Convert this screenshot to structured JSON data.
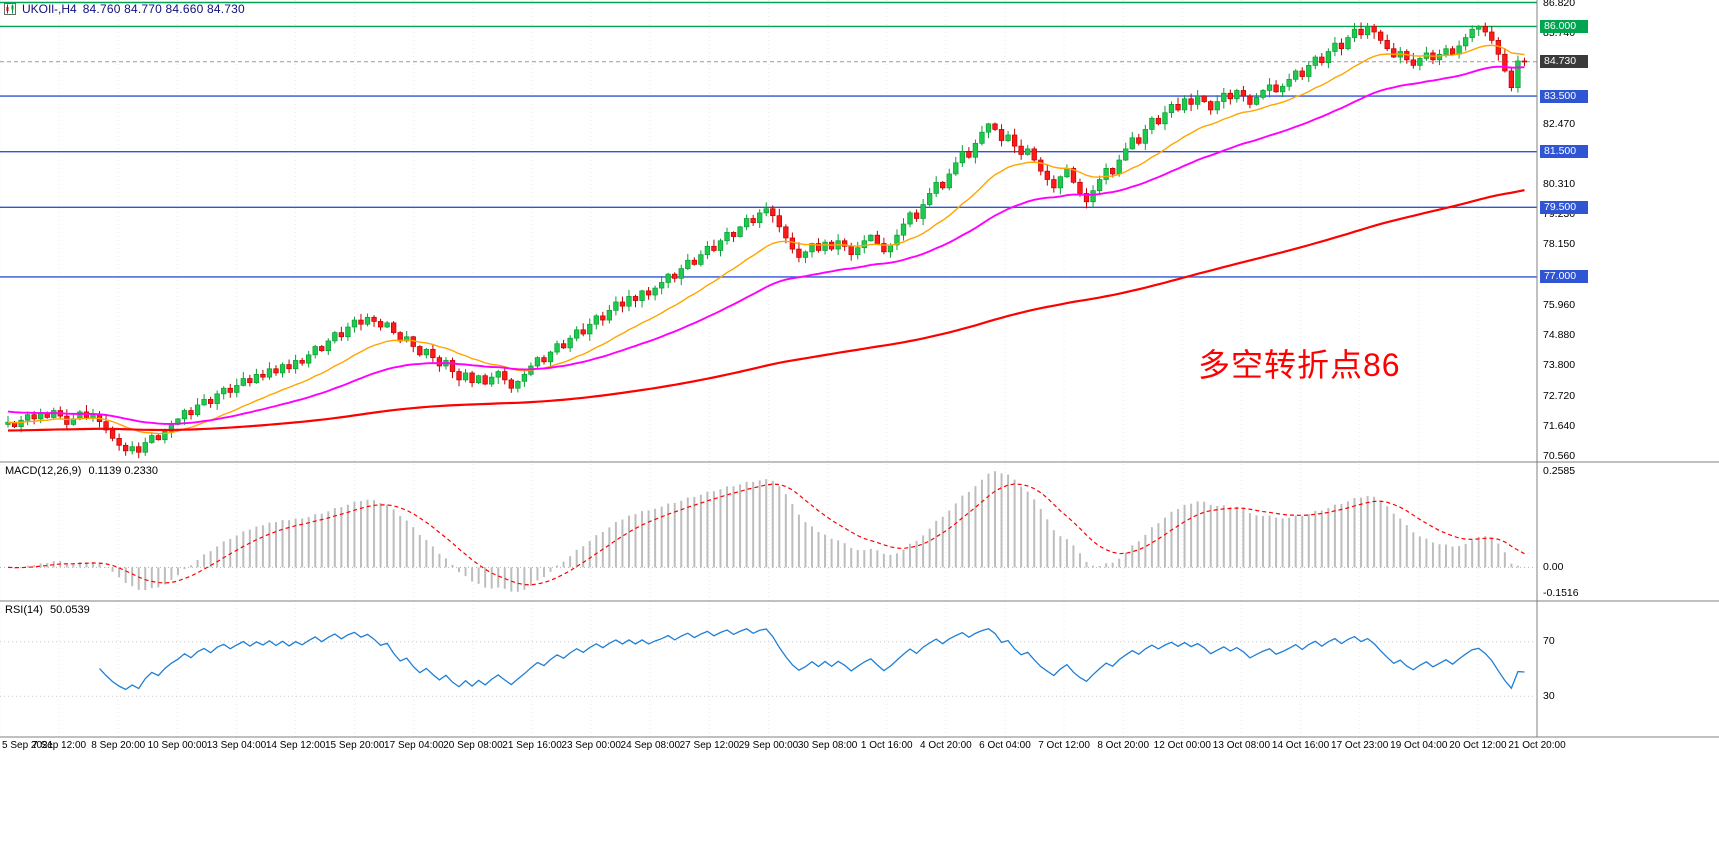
{
  "header": {
    "symbol": "UKOIl-,H4",
    "ohlc": "84.760 84.770 84.660 84.730"
  },
  "chart_data": [
    {
      "type": "candlestick",
      "symbol": "UKOIl-",
      "timeframe": "H4",
      "ylim": [
        70.35,
        86.95
      ],
      "y_ticks": [
        86.82,
        85.74,
        82.47,
        80.31,
        79.23,
        78.15,
        75.96,
        74.88,
        73.8,
        72.72,
        71.64,
        70.56
      ],
      "x_labels": [
        "5 Sep 2021",
        "7 Sep 12:00",
        "8 Sep 20:00",
        "10 Sep 00:00",
        "13 Sep 04:00",
        "14 Sep 12:00",
        "15 Sep 20:00",
        "17 Sep 04:00",
        "20 Sep 08:00",
        "21 Sep 16:00",
        "23 Sep 00:00",
        "24 Sep 08:00",
        "27 Sep 12:00",
        "29 Sep 00:00",
        "30 Sep 08:00",
        "1 Oct 16:00",
        "4 Oct 20:00",
        "6 Oct 04:00",
        "7 Oct 12:00",
        "8 Oct 20:00",
        "12 Oct 00:00",
        "13 Oct 08:00",
        "14 Oct 16:00",
        "17 Oct 23:00",
        "19 Oct 04:00",
        "20 Oct 12:00",
        "21 Oct 20:00"
      ],
      "first_open": 71.7,
      "closes": [
        71.78,
        71.62,
        71.85,
        72.05,
        71.9,
        72.1,
        71.95,
        72.2,
        72.0,
        71.7,
        71.9,
        72.15,
        71.95,
        72.05,
        71.8,
        71.5,
        71.2,
        70.95,
        70.75,
        70.9,
        70.7,
        71.05,
        71.3,
        71.15,
        71.45,
        71.7,
        71.9,
        72.2,
        72.05,
        72.4,
        72.6,
        72.45,
        72.8,
        73.0,
        72.85,
        73.1,
        73.35,
        73.2,
        73.5,
        73.4,
        73.7,
        73.55,
        73.85,
        73.7,
        74.0,
        73.9,
        74.2,
        74.5,
        74.35,
        74.7,
        75.0,
        74.85,
        75.2,
        75.45,
        75.3,
        75.55,
        75.4,
        75.2,
        75.35,
        75.0,
        74.7,
        74.85,
        74.5,
        74.2,
        74.4,
        74.1,
        73.8,
        74.0,
        73.6,
        73.3,
        73.55,
        73.2,
        73.45,
        73.15,
        73.4,
        73.6,
        73.3,
        73.0,
        73.25,
        73.5,
        73.8,
        74.1,
        73.95,
        74.3,
        74.6,
        74.45,
        74.8,
        75.1,
        74.95,
        75.3,
        75.6,
        75.45,
        75.8,
        76.1,
        75.95,
        76.3,
        76.15,
        76.5,
        76.35,
        76.6,
        76.8,
        77.1,
        76.95,
        77.3,
        77.6,
        77.45,
        77.8,
        78.1,
        77.95,
        78.3,
        78.6,
        78.45,
        78.8,
        79.1,
        78.95,
        79.3,
        79.45,
        79.2,
        78.8,
        78.4,
        78.0,
        77.7,
        77.9,
        78.2,
        77.95,
        78.25,
        78.0,
        78.3,
        78.1,
        77.8,
        78.05,
        78.3,
        78.5,
        78.2,
        77.9,
        78.15,
        78.5,
        78.9,
        79.3,
        79.1,
        79.6,
        80.0,
        80.4,
        80.2,
        80.7,
        81.1,
        81.5,
        81.3,
        81.8,
        82.2,
        82.5,
        82.3,
        81.9,
        82.1,
        81.7,
        81.4,
        81.6,
        81.2,
        80.8,
        80.5,
        80.2,
        80.6,
        80.9,
        80.4,
        80.0,
        79.7,
        80.1,
        80.5,
        80.9,
        80.7,
        81.2,
        81.6,
        82.0,
        81.8,
        82.3,
        82.7,
        82.5,
        82.9,
        83.2,
        83.0,
        83.4,
        83.2,
        83.5,
        83.3,
        83.0,
        83.3,
        83.6,
        83.4,
        83.7,
        83.5,
        83.2,
        83.45,
        83.7,
        83.9,
        83.65,
        83.85,
        84.1,
        84.4,
        84.2,
        84.6,
        84.9,
        84.7,
        85.1,
        85.4,
        85.2,
        85.6,
        85.9,
        85.7,
        86.0,
        85.8,
        85.5,
        85.2,
        84.9,
        85.1,
        84.8,
        84.6,
        84.85,
        85.05,
        84.8,
        85.0,
        85.2,
        85.0,
        85.3,
        85.6,
        85.9,
        86.0,
        85.8,
        85.5,
        85.0,
        84.4,
        83.8,
        84.76,
        84.73
      ],
      "levels": [
        {
          "value": 86.86,
          "label": "",
          "color": "#00A550"
        },
        {
          "value": 86.0,
          "label": "86.000",
          "color": "#00A550"
        },
        {
          "value": 83.5,
          "label": "83.500",
          "color": "#2F55D4"
        },
        {
          "value": 81.5,
          "label": "81.500",
          "color": "#2F55D4"
        },
        {
          "value": 79.5,
          "label": "79.500",
          "color": "#2F55D4"
        },
        {
          "value": 77.0,
          "label": "77.000",
          "color": "#2F55D4"
        }
      ],
      "current_price": {
        "value": 84.73,
        "label": "84.730",
        "badge_color": "#3A3A3A"
      },
      "moving_averages": [
        {
          "name": "fast",
          "period": 18,
          "color": "#FFA500"
        },
        {
          "name": "medium",
          "period": 45,
          "color": "#FF00FF"
        },
        {
          "name": "slow",
          "period": 200,
          "color": "#FF0000"
        }
      ],
      "colors": {
        "bull": "#1EC94E",
        "bull_border": "#0A9E35",
        "bear": "#FF1A1A",
        "bear_border": "#C00000",
        "grid": "#EBEBEB",
        "separator": "#808080"
      },
      "annotation": {
        "text": "多空转折点86",
        "color": "#FF0000"
      }
    },
    {
      "type": "macd",
      "label": "MACD(12,26,9)",
      "values_text": "0.1139 0.2330",
      "params": [
        12,
        26,
        9
      ],
      "y_labels": {
        "top": "0.2585",
        "zero": "0.00",
        "bottom": "-0.1516"
      },
      "colors": {
        "histogram": "#BDBDBD",
        "signal": "#FF0000"
      }
    },
    {
      "type": "rsi",
      "label": "RSI(14)",
      "value_text": "50.0539",
      "period": 14,
      "levels": [
        70,
        30
      ],
      "color": "#1E7FD6"
    }
  ]
}
